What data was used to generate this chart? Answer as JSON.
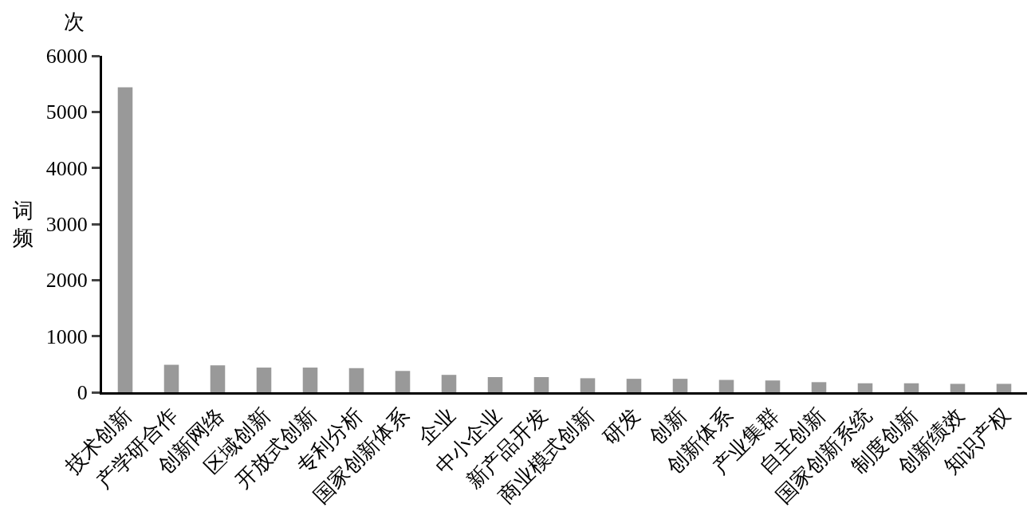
{
  "chart_data": {
    "type": "bar",
    "ylabel": "词频",
    "annotations": [
      "次"
    ],
    "categories": [
      "技术创新",
      "产学研合作",
      "创新网络",
      "区域创新",
      "开放式创新",
      "专利分析",
      "国家创新体系",
      "企业",
      "中小企业",
      "新产品开发",
      "商业模式创新",
      "研发",
      "创新",
      "创新体系",
      "产业集群",
      "自主创新",
      "国家创新系统",
      "制度创新",
      "创新绩效",
      "知识产权"
    ],
    "values": [
      5440,
      490,
      480,
      440,
      440,
      430,
      380,
      310,
      270,
      270,
      250,
      240,
      240,
      220,
      210,
      180,
      160,
      160,
      150,
      150
    ],
    "color": "#999999",
    "ylim": [
      0,
      6000
    ],
    "yticks": [
      0,
      1000,
      2000,
      3000,
      4000,
      5000,
      6000
    ],
    "grid": false
  }
}
